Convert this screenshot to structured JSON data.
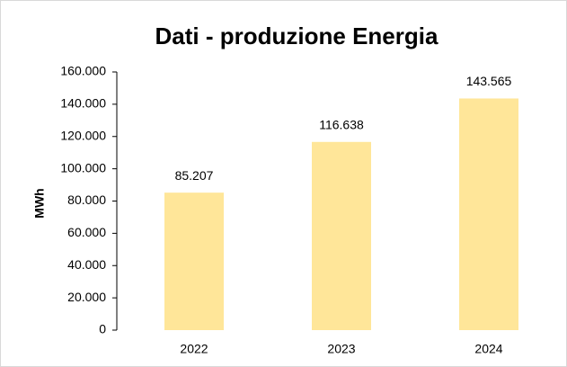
{
  "chart_data": {
    "type": "bar",
    "title": "Dati - produzione Energia",
    "ylabel": "MWh",
    "categories": [
      "2022",
      "2023",
      "2024"
    ],
    "values": [
      85207,
      116638,
      143565
    ],
    "value_labels": [
      "85.207",
      "116.638",
      "143.565"
    ],
    "color": "#ffe699",
    "ylim": [
      0,
      160000
    ],
    "yticks": [
      0,
      {
        "value": 20000,
        "label": "20.000"
      },
      {
        "value": 40000,
        "label": "40.000"
      },
      {
        "value": 60000,
        "label": "60.000"
      },
      {
        "value": 80000,
        "label": "80.000"
      },
      {
        "value": 100000,
        "label": "100.000"
      },
      {
        "value": 120000,
        "label": "120.000"
      },
      {
        "value": 140000,
        "label": "140.000"
      },
      {
        "value": 160000,
        "label": "160.000"
      }
    ],
    "grid": false
  }
}
